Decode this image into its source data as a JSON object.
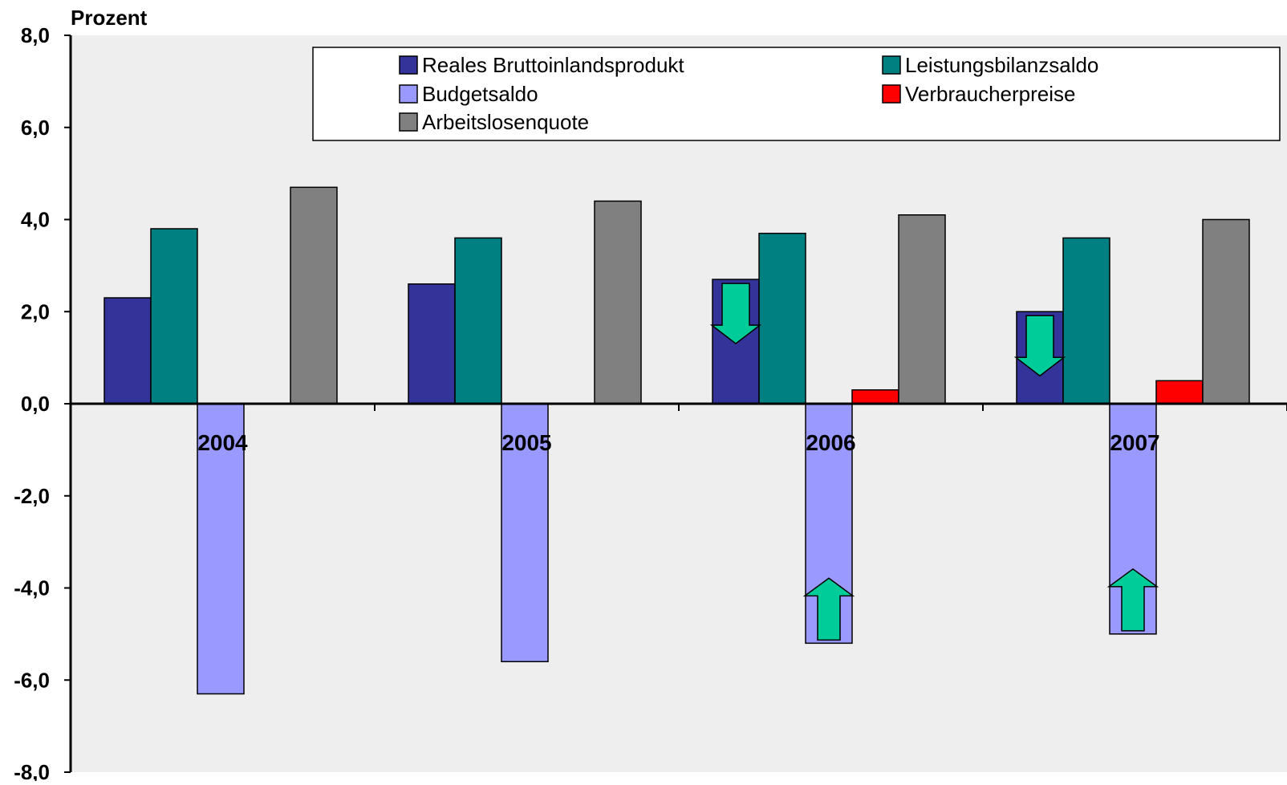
{
  "chart_data": {
    "type": "bar",
    "ylabel": "Prozent",
    "ylim": [
      -8,
      8
    ],
    "ytick_labels": [
      "8,0",
      "6,0",
      "4,0",
      "2,0",
      "0,0",
      "-2,0",
      "-4,0",
      "-6,0",
      "-8,0"
    ],
    "categories": [
      "2004",
      "2005",
      "2006",
      "2007"
    ],
    "grid": false,
    "legend_position": "top",
    "plot_background": "#eeeeee",
    "series": [
      {
        "name": "Reales Bruttoinlandsprodukt",
        "color": "#333399",
        "values": [
          2.3,
          2.6,
          2.7,
          2.0
        ]
      },
      {
        "name": "Leistungsbilanzsaldo",
        "color": "#008080",
        "values": [
          3.8,
          3.6,
          3.7,
          3.6
        ]
      },
      {
        "name": "Budgetsaldo",
        "color": "#9999ff",
        "values": [
          -6.3,
          -5.6,
          -5.2,
          -5.0
        ]
      },
      {
        "name": "Verbraucherpreise",
        "color": "#ff0000",
        "values": [
          0.0,
          0.0,
          0.3,
          0.5
        ]
      },
      {
        "name": "Arbeitslosenquote",
        "color": "#808080",
        "values": [
          4.7,
          4.4,
          4.1,
          4.0
        ]
      }
    ],
    "annotations": [
      {
        "type": "arrow-down",
        "category": "2006",
        "series": "Reales Bruttoinlandsprodukt",
        "color": "#00cc99"
      },
      {
        "type": "arrow-down",
        "category": "2007",
        "series": "Reales Bruttoinlandsprodukt",
        "color": "#00cc99"
      },
      {
        "type": "arrow-up",
        "category": "2006",
        "series": "Budgetsaldo",
        "color": "#00cc99"
      },
      {
        "type": "arrow-up",
        "category": "2007",
        "series": "Budgetsaldo",
        "color": "#00cc99"
      }
    ]
  }
}
